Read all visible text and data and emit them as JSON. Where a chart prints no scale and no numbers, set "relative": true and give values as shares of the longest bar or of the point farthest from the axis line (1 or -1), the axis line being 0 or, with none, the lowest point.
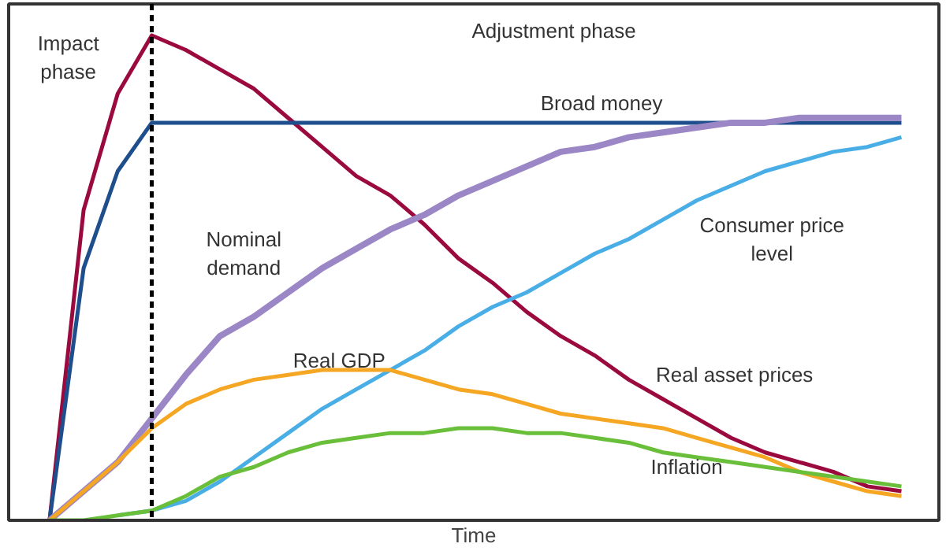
{
  "chart_data": {
    "type": "line",
    "relative": true,
    "xlabel": "Time",
    "categories": [
      null,
      null,
      null,
      null,
      null,
      null,
      null,
      null,
      null,
      null,
      null,
      null,
      null,
      null,
      null,
      null,
      null,
      null,
      null,
      null,
      null,
      null,
      null,
      null,
      null,
      null
    ],
    "series": [
      {
        "name": "Real asset prices",
        "color": "#9b0a3e",
        "values": [
          0,
          0.64,
          0.88,
          1.0,
          0.97,
          0.93,
          0.89,
          0.83,
          0.77,
          0.71,
          0.67,
          0.61,
          0.54,
          0.49,
          0.43,
          0.38,
          0.34,
          0.29,
          0.25,
          0.21,
          0.17,
          0.14,
          0.12,
          0.1,
          0.07,
          0.06
        ]
      },
      {
        "name": "Broad money",
        "color": "#1f4e8c",
        "values": [
          0,
          0.52,
          0.72,
          0.82,
          0.82,
          0.82,
          0.82,
          0.82,
          0.82,
          0.82,
          0.82,
          0.82,
          0.82,
          0.82,
          0.82,
          0.82,
          0.82,
          0.82,
          0.82,
          0.82,
          0.82,
          0.82,
          0.82,
          0.82,
          0.82,
          0.82
        ]
      },
      {
        "name": "Nominal demand",
        "color": "#9b86c6",
        "values": [
          0,
          0.06,
          0.12,
          0.21,
          0.3,
          0.38,
          0.42,
          0.47,
          0.52,
          0.56,
          0.6,
          0.63,
          0.67,
          0.7,
          0.73,
          0.76,
          0.77,
          0.79,
          0.8,
          0.81,
          0.82,
          0.82,
          0.83,
          0.83,
          0.83,
          0.83
        ]
      },
      {
        "name": "Consumer price level",
        "color": "#4aaee6",
        "values": [
          null,
          null,
          0.01,
          0.02,
          0.04,
          0.08,
          0.13,
          0.18,
          0.23,
          0.27,
          0.31,
          0.35,
          0.4,
          0.44,
          0.47,
          0.51,
          0.55,
          0.58,
          0.62,
          0.66,
          0.69,
          0.72,
          0.74,
          0.76,
          0.77,
          0.79
        ]
      },
      {
        "name": "Real GDP",
        "color": "#f5a623",
        "values": [
          0,
          0.06,
          0.12,
          0.19,
          0.24,
          0.27,
          0.29,
          0.3,
          0.31,
          0.31,
          0.31,
          0.29,
          0.27,
          0.26,
          0.24,
          0.22,
          0.21,
          0.2,
          0.19,
          0.17,
          0.15,
          0.13,
          0.1,
          0.08,
          0.06,
          0.05
        ]
      },
      {
        "name": "Inflation",
        "color": "#6abf3a",
        "values": [
          0,
          0,
          0.01,
          0.02,
          0.05,
          0.09,
          0.11,
          0.14,
          0.16,
          0.17,
          0.18,
          0.18,
          0.19,
          0.19,
          0.18,
          0.18,
          0.17,
          0.16,
          0.14,
          0.13,
          0.12,
          0.11,
          0.1,
          0.09,
          0.08,
          0.07
        ]
      }
    ],
    "annotations": [
      "Impact phase",
      "Adjustment phase"
    ]
  }
}
